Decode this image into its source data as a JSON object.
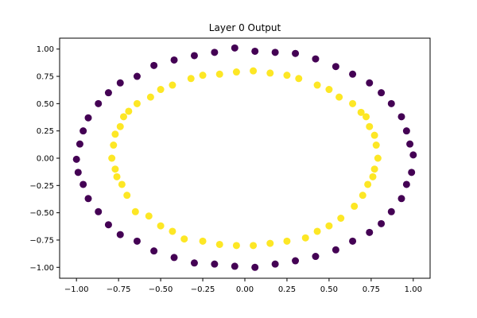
{
  "chart_data": {
    "type": "scatter",
    "title": "Layer 0 Output",
    "xlabel": "",
    "ylabel": "",
    "xlim": [
      -1.1,
      1.1
    ],
    "ylim": [
      -1.1,
      1.1
    ],
    "x_ticks": [
      -1.0,
      -0.75,
      -0.5,
      -0.25,
      0.0,
      0.25,
      0.5,
      0.75,
      1.0
    ],
    "x_tick_labels": [
      "−1.00",
      "−0.75",
      "−0.50",
      "−0.25",
      "0.00",
      "0.25",
      "0.50",
      "0.75",
      "1.00"
    ],
    "y_ticks": [
      1.0,
      0.75,
      0.5,
      0.25,
      0.0,
      -0.25,
      -0.5,
      -0.75,
      -1.0
    ],
    "y_tick_labels": [
      "1.00",
      "0.75",
      "0.50",
      "0.25",
      "0.00",
      "−0.25",
      "−0.50",
      "−0.75",
      "−1.00"
    ],
    "grid": false,
    "series": [
      {
        "color": "#440154",
        "points": [
          [
            0.06,
            0.98
          ],
          [
            -0.06,
            1.01
          ],
          [
            0.18,
            0.97
          ],
          [
            -0.18,
            0.97
          ],
          [
            0.3,
            0.96
          ],
          [
            -0.3,
            0.94
          ],
          [
            0.42,
            0.91
          ],
          [
            -0.42,
            0.9
          ],
          [
            0.54,
            0.84
          ],
          [
            -0.54,
            0.85
          ],
          [
            0.64,
            0.77
          ],
          [
            -0.64,
            0.75
          ],
          [
            0.74,
            0.69
          ],
          [
            -0.74,
            0.69
          ],
          [
            0.81,
            0.6
          ],
          [
            -0.81,
            0.6
          ],
          [
            0.87,
            0.5
          ],
          [
            -0.87,
            0.5
          ],
          [
            0.93,
            0.38
          ],
          [
            -0.93,
            0.37
          ],
          [
            0.96,
            0.25
          ],
          [
            -0.96,
            0.25
          ],
          [
            0.98,
            0.13
          ],
          [
            -0.98,
            0.13
          ],
          [
            1.0,
            0.03
          ],
          [
            -1.0,
            -0.01
          ],
          [
            0.99,
            -0.13
          ],
          [
            -0.99,
            -0.13
          ],
          [
            0.96,
            -0.24
          ],
          [
            -0.96,
            -0.24
          ],
          [
            0.93,
            -0.37
          ],
          [
            -0.93,
            -0.37
          ],
          [
            0.87,
            -0.49
          ],
          [
            -0.87,
            -0.49
          ],
          [
            0.81,
            -0.6
          ],
          [
            -0.81,
            -0.61
          ],
          [
            0.74,
            -0.68
          ],
          [
            -0.74,
            -0.7
          ],
          [
            0.64,
            -0.76
          ],
          [
            -0.64,
            -0.76
          ],
          [
            0.54,
            -0.84
          ],
          [
            -0.54,
            -0.85
          ],
          [
            0.42,
            -0.9
          ],
          [
            -0.42,
            -0.91
          ],
          [
            0.3,
            -0.94
          ],
          [
            -0.3,
            -0.96
          ],
          [
            0.18,
            -0.97
          ],
          [
            -0.18,
            -0.97
          ],
          [
            0.06,
            -1.0
          ],
          [
            -0.06,
            -0.99
          ]
        ]
      },
      {
        "color": "#fde725",
        "points": [
          [
            0.05,
            0.8
          ],
          [
            -0.05,
            0.79
          ],
          [
            0.15,
            0.78
          ],
          [
            -0.15,
            0.77
          ],
          [
            0.25,
            0.76
          ],
          [
            -0.25,
            0.76
          ],
          [
            0.32,
            0.73
          ],
          [
            -0.32,
            0.73
          ],
          [
            0.43,
            0.67
          ],
          [
            -0.43,
            0.67
          ],
          [
            0.5,
            0.63
          ],
          [
            -0.5,
            0.63
          ],
          [
            0.56,
            0.56
          ],
          [
            -0.56,
            0.56
          ],
          [
            0.64,
            0.5
          ],
          [
            -0.64,
            0.5
          ],
          [
            0.69,
            0.42
          ],
          [
            -0.69,
            0.43
          ],
          [
            0.72,
            0.38
          ],
          [
            -0.72,
            0.38
          ],
          [
            0.74,
            0.29
          ],
          [
            -0.74,
            0.29
          ],
          [
            0.77,
            0.21
          ],
          [
            -0.77,
            0.22
          ],
          [
            0.78,
            0.12
          ],
          [
            -0.78,
            0.12
          ],
          [
            0.79,
            0.0
          ],
          [
            -0.79,
            0.0
          ],
          [
            0.77,
            -0.1
          ],
          [
            -0.77,
            -0.1
          ],
          [
            0.76,
            -0.17
          ],
          [
            -0.76,
            -0.17
          ],
          [
            0.73,
            -0.24
          ],
          [
            -0.73,
            -0.24
          ],
          [
            0.7,
            -0.34
          ],
          [
            -0.7,
            -0.34
          ],
          [
            0.65,
            -0.44
          ],
          [
            -0.65,
            -0.49
          ],
          [
            0.57,
            -0.55
          ],
          [
            -0.57,
            -0.53
          ],
          [
            0.5,
            -0.62
          ],
          [
            -0.5,
            -0.62
          ],
          [
            0.43,
            -0.67
          ],
          [
            -0.43,
            -0.67
          ],
          [
            0.36,
            -0.73
          ],
          [
            -0.36,
            -0.74
          ],
          [
            0.25,
            -0.76
          ],
          [
            -0.25,
            -0.76
          ],
          [
            0.15,
            -0.78
          ],
          [
            -0.15,
            -0.79
          ],
          [
            0.05,
            -0.8
          ],
          [
            -0.05,
            -0.8
          ]
        ]
      }
    ]
  }
}
